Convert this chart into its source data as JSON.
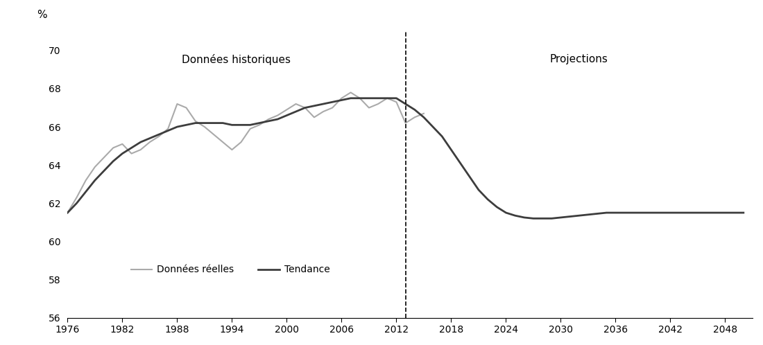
{
  "title_left": "Données historiques",
  "title_right": "Projections",
  "ylabel": "%",
  "ylim": [
    56,
    71
  ],
  "yticks": [
    56,
    58,
    60,
    62,
    64,
    66,
    68,
    70
  ],
  "xlim": [
    1976,
    2051
  ],
  "xticks": [
    1976,
    1982,
    1988,
    1994,
    2000,
    2006,
    2012,
    2018,
    2024,
    2030,
    2036,
    2042,
    2048
  ],
  "vline_x": 2013,
  "color_real": "#aaaaaa",
  "color_trend": "#3d3d3d",
  "real_data": {
    "years": [
      1976,
      1977,
      1978,
      1979,
      1980,
      1981,
      1982,
      1983,
      1984,
      1985,
      1986,
      1987,
      1988,
      1989,
      1990,
      1991,
      1992,
      1993,
      1994,
      1995,
      1996,
      1997,
      1998,
      1999,
      2000,
      2001,
      2002,
      2003,
      2004,
      2005,
      2006,
      2007,
      2008,
      2009,
      2010,
      2011,
      2012,
      2013,
      2014,
      2015
    ],
    "values": [
      61.5,
      62.3,
      63.2,
      63.9,
      64.4,
      64.9,
      65.1,
      64.6,
      64.8,
      65.2,
      65.5,
      65.9,
      67.2,
      67.0,
      66.3,
      66.0,
      65.6,
      65.2,
      64.8,
      65.2,
      65.9,
      66.1,
      66.4,
      66.6,
      66.9,
      67.2,
      67.0,
      66.5,
      66.8,
      67.0,
      67.5,
      67.8,
      67.5,
      67.0,
      67.2,
      67.5,
      67.3,
      66.2,
      66.5,
      66.7
    ]
  },
  "trend_data": {
    "years": [
      1976,
      1977,
      1978,
      1979,
      1980,
      1981,
      1982,
      1983,
      1984,
      1985,
      1986,
      1987,
      1988,
      1989,
      1990,
      1991,
      1992,
      1993,
      1994,
      1995,
      1996,
      1997,
      1998,
      1999,
      2000,
      2001,
      2002,
      2003,
      2004,
      2005,
      2006,
      2007,
      2008,
      2009,
      2010,
      2011,
      2012,
      2013,
      2014,
      2015,
      2016,
      2017,
      2018,
      2019,
      2020,
      2021,
      2022,
      2023,
      2024,
      2025,
      2026,
      2027,
      2028,
      2029,
      2030,
      2031,
      2032,
      2033,
      2034,
      2035,
      2036,
      2037,
      2038,
      2039,
      2040,
      2041,
      2042,
      2043,
      2044,
      2045,
      2046,
      2047,
      2048,
      2049,
      2050
    ],
    "values": [
      61.5,
      62.0,
      62.6,
      63.2,
      63.7,
      64.2,
      64.6,
      64.9,
      65.2,
      65.4,
      65.6,
      65.8,
      66.0,
      66.1,
      66.2,
      66.2,
      66.2,
      66.2,
      66.1,
      66.1,
      66.1,
      66.2,
      66.3,
      66.4,
      66.6,
      66.8,
      67.0,
      67.1,
      67.2,
      67.3,
      67.4,
      67.5,
      67.5,
      67.5,
      67.5,
      67.5,
      67.5,
      67.2,
      66.9,
      66.5,
      66.0,
      65.5,
      64.8,
      64.1,
      63.4,
      62.7,
      62.2,
      61.8,
      61.5,
      61.35,
      61.25,
      61.2,
      61.2,
      61.2,
      61.25,
      61.3,
      61.35,
      61.4,
      61.45,
      61.5,
      61.5,
      61.5,
      61.5,
      61.5,
      61.5,
      61.5,
      61.5,
      61.5,
      61.5,
      61.5,
      61.5,
      61.5,
      61.5,
      61.5,
      61.5
    ]
  },
  "legend_label_real": "Données réelles",
  "legend_label_trend": "Tendance",
  "background_color": "#ffffff",
  "linewidth_real": 1.5,
  "linewidth_trend": 2.0,
  "figsize": [
    11.0,
    4.98
  ],
  "dpi": 100
}
